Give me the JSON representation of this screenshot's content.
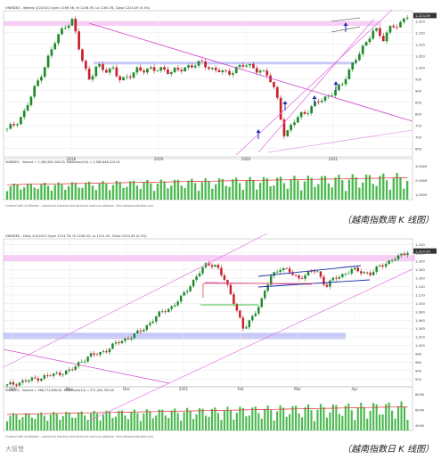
{
  "watermark": "大智慧",
  "chart_data": [
    {
      "type": "candlestick",
      "header": "VNINDEX - Weekly 4/2/2021 Open 1169.56, Hi 1236.39, Lo 1160.78, Close 1224.49 (5.4%)",
      "volume_header": "VNINDEX - Volume = 2,560,580,344.00, MAVolume(14) = 2,580,848,224.00",
      "footer": "Created with AmiBroker - advanced charting and technical analysis software. http://www.amibroker.com",
      "caption": "（越南指数周 K 线图）",
      "last_price_label": "1,224.49",
      "x_ticks": [
        "2018",
        "2019",
        "2020",
        "2021"
      ],
      "y_ticks": [
        650,
        700,
        750,
        800,
        850,
        900,
        950,
        1000,
        1050,
        1100,
        1150,
        1200
      ],
      "ylim": [
        630,
        1230
      ],
      "volume_ticks": [
        "3,000M",
        "2,000M",
        "1,000M"
      ],
      "zones": [
        [
          1180,
          1200
        ],
        [
          1015,
          1025
        ]
      ],
      "close_series": [
        730,
        760,
        800,
        880,
        960,
        1040,
        1120,
        1180,
        1205,
        1050,
        950,
        1010,
        980,
        1000,
        940,
        960,
        1000,
        985,
        990,
        1000,
        975,
        990,
        1005,
        1010,
        1020,
        995,
        985,
        970,
        1000,
        1010,
        1000,
        990,
        960,
        880,
        700,
        760,
        800,
        820,
        850,
        870,
        900,
        920,
        1000,
        1060,
        1100,
        1180,
        1120,
        1170,
        1190,
        1224
      ]
    },
    {
      "type": "candlestick",
      "header": "VNINDEX - Daily 4/2/2021 Open 1223.76, Hi 1236.33, Lo 1221.92, Close 1224.49 (0.3%)",
      "volume_header": "VNINDEX - Volume = 588,772,896.00, MAVolume(14) = 571,404,784.00",
      "footer": "Created with AmiBroker - advanced charting and technical analysis software. http://www.amibroker.com",
      "caption": "（越南指数日 K 线图）",
      "last_price_label": "1,224.49",
      "x_ticks": [
        "Oct",
        "Nov",
        "Dec",
        "2021",
        "Feb",
        "Mar",
        "Apr"
      ],
      "y_ticks": [
        920,
        940,
        960,
        980,
        1000,
        1020,
        1040,
        1060,
        1080,
        1100,
        1120,
        1140,
        1160,
        1180,
        1200,
        1220,
        1240
      ],
      "ylim": [
        910,
        1245
      ],
      "volume_ticks": [
        "800M",
        "600M",
        "400M"
      ],
      "zones": [
        [
          1015,
          1030
        ],
        [
          1200,
          1215
        ]
      ],
      "close_series": [
        905,
        910,
        915,
        920,
        925,
        930,
        935,
        940,
        960,
        975,
        980,
        990,
        1005,
        1015,
        1025,
        1040,
        1060,
        1080,
        1090,
        1110,
        1140,
        1170,
        1195,
        1190,
        1150,
        1100,
        1035,
        1070,
        1110,
        1165,
        1185,
        1175,
        1160,
        1170,
        1180,
        1140,
        1160,
        1170,
        1180,
        1175,
        1170,
        1190,
        1200,
        1210,
        1224
      ]
    }
  ]
}
